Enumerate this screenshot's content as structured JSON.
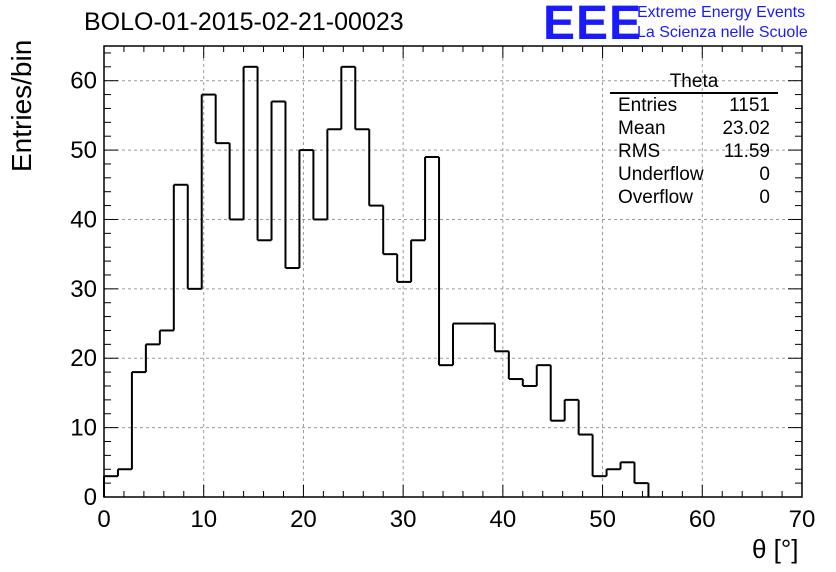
{
  "header": {
    "title": "BOLO-01-2015-02-21-00023",
    "logo_mark": "EEE",
    "logo_line1": "Extreme Energy Events",
    "logo_line2": "La Scienza nelle Scuole"
  },
  "stats_box": {
    "title": "Theta",
    "rows": [
      {
        "label": "Entries",
        "value": "1151"
      },
      {
        "label": "Mean",
        "value": "23.02"
      },
      {
        "label": "RMS",
        "value": "11.59"
      },
      {
        "label": "Underflow",
        "value": "0"
      },
      {
        "label": "Overflow",
        "value": "0"
      }
    ]
  },
  "chart_data": {
    "type": "bar",
    "style": "step histogram",
    "title": "BOLO-01-2015-02-21-00023",
    "xlabel": "θ [°]",
    "ylabel": "Entries/bin",
    "xlim": [
      0,
      70
    ],
    "ylim": [
      0,
      65
    ],
    "grid": true,
    "bin_width": 1.4,
    "bin_start": 0,
    "values": [
      3,
      4,
      18,
      22,
      24,
      45,
      30,
      58,
      51,
      40,
      62,
      37,
      57,
      33,
      50,
      40,
      53,
      62,
      53,
      42,
      35,
      31,
      37,
      49,
      19,
      25,
      25,
      25,
      21,
      17,
      16,
      19,
      11,
      14,
      9,
      3,
      4,
      5,
      2
    ],
    "x_ticks": [
      0,
      10,
      20,
      30,
      40,
      50,
      60,
      70
    ],
    "y_ticks": [
      0,
      10,
      20,
      30,
      40,
      50,
      60
    ],
    "line_color": "#000000",
    "grid_color": "#9a9a9a"
  }
}
